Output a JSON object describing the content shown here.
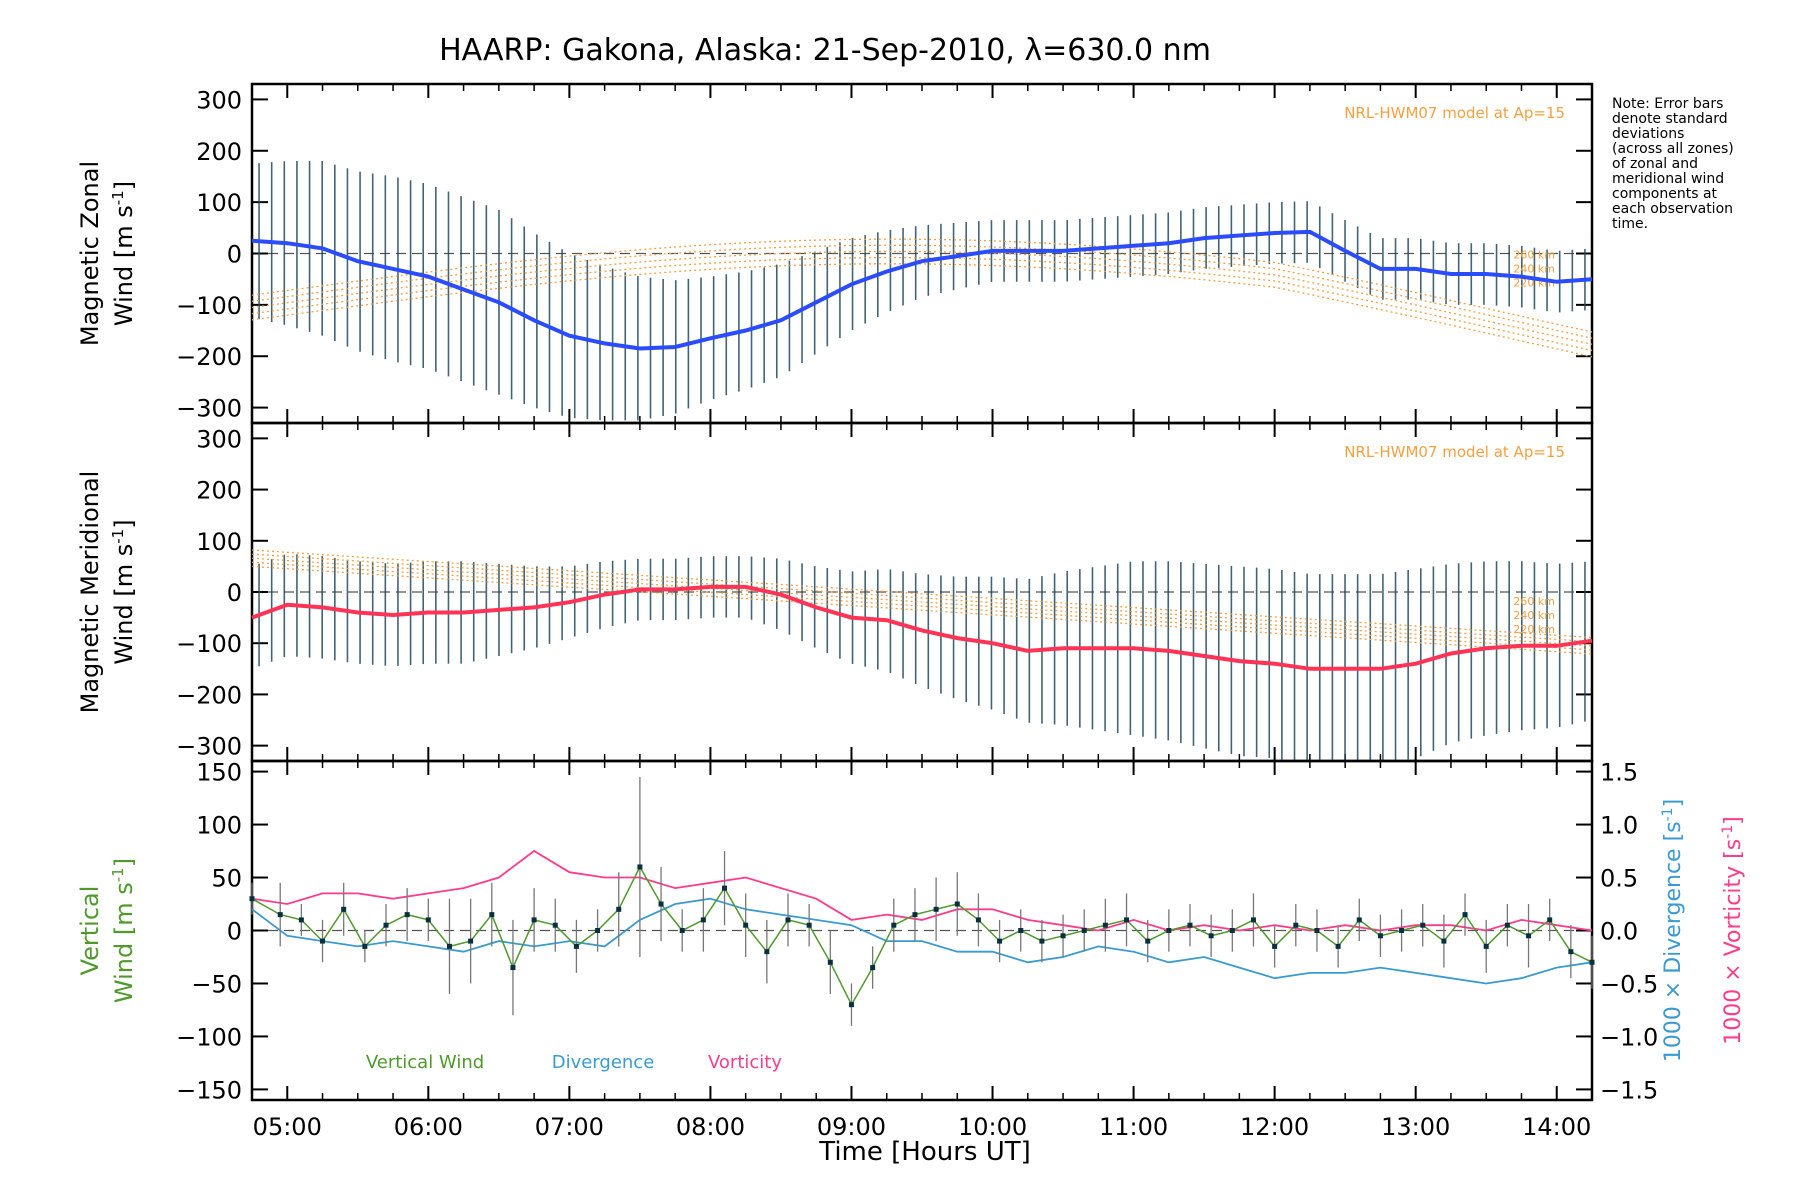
{
  "title": "HAARP: Gakona,  Alaska: 21-Sep-2010, λ=630.0 nm",
  "note": [
    "Note: Error bars",
    "denote standard",
    "deviations",
    "(across all zones)",
    "of zonal and",
    "meridional wind",
    "components at",
    "each observation",
    "time."
  ],
  "colors": {
    "zonal": "#2b4bff",
    "meridional": "#ff3355",
    "vertical": "#4f9a2a",
    "divergence": "#3a9bd0",
    "vorticity": "#ff3c8c",
    "model": "#f5a040",
    "errbar": "#1f4a5e",
    "zone_points": "#8e8ed6"
  },
  "x_axis": {
    "label": "Time [Hours UT]",
    "range": [
      "04:45",
      "14:15"
    ],
    "tick_labels": [
      "05:00",
      "06:00",
      "07:00",
      "08:00",
      "09:00",
      "10:00",
      "11:00",
      "12:00",
      "13:00",
      "14:00"
    ]
  },
  "chart_data": [
    {
      "type": "line",
      "panel": "zonal",
      "ylabel_1": "Magnetic Zonal",
      "ylabel_2": "Wind [m s",
      "ylabel_sup": "-1",
      "ylabel_end": "]",
      "ylim": [
        -330,
        330
      ],
      "ytick_labels": [
        "300",
        "200",
        "100",
        "0",
        "−100",
        "−200",
        "−300"
      ],
      "model_label": "NRL-HWM07 model at Ap=15",
      "model_altitudes": [
        "260 km",
        "240 km",
        "220 km"
      ],
      "x_hours": [
        4.75,
        5.0,
        5.25,
        5.5,
        5.75,
        6.0,
        6.25,
        6.5,
        6.75,
        7.0,
        7.25,
        7.5,
        7.75,
        8.0,
        8.25,
        8.5,
        8.75,
        9.0,
        9.25,
        9.5,
        9.75,
        10.0,
        10.25,
        10.5,
        10.75,
        11.0,
        11.25,
        11.5,
        11.75,
        12.0,
        12.25,
        12.5,
        12.75,
        13.0,
        13.25,
        13.5,
        13.75,
        14.0,
        14.25
      ],
      "series": [
        {
          "values": [
            25,
            20,
            10,
            -15,
            -30,
            -45,
            -70,
            -95,
            -130,
            -160,
            -175,
            -185,
            -182,
            -165,
            -150,
            -130,
            -95,
            -60,
            -35,
            -15,
            -5,
            5,
            5,
            5,
            10,
            15,
            20,
            30,
            35,
            40,
            42,
            5,
            -30,
            -30,
            -40,
            -40,
            -45,
            -55,
            -50
          ]
        }
      ],
      "errbar_sd": [
        150,
        160,
        170,
        175,
        180,
        180,
        180,
        180,
        170,
        160,
        150,
        140,
        130,
        120,
        115,
        110,
        100,
        90,
        80,
        70,
        65,
        60,
        60,
        60,
        60,
        60,
        60,
        60,
        60,
        60,
        60,
        60,
        60,
        60,
        60,
        60,
        60,
        60,
        60
      ]
    },
    {
      "type": "line",
      "panel": "meridional",
      "ylabel_1": "Magnetic Meridional",
      "ylabel_2": "Wind [m s",
      "ylabel_sup": "-1",
      "ylabel_end": "]",
      "ylim": [
        -330,
        330
      ],
      "ytick_labels": [
        "300",
        "200",
        "100",
        "0",
        "−100",
        "−200",
        "−300"
      ],
      "model_label": "NRL-HWM07 model at Ap=15",
      "model_altitudes": [
        "260 km",
        "240 km",
        "220 km"
      ],
      "x_hours": [
        4.75,
        5.0,
        5.25,
        5.5,
        5.75,
        6.0,
        6.25,
        6.5,
        6.75,
        7.0,
        7.25,
        7.5,
        7.75,
        8.0,
        8.25,
        8.5,
        8.75,
        9.0,
        9.25,
        9.5,
        9.75,
        10.0,
        10.25,
        10.5,
        10.75,
        11.0,
        11.25,
        11.5,
        11.75,
        12.0,
        12.25,
        12.5,
        12.75,
        13.0,
        13.25,
        13.5,
        13.75,
        14.0,
        14.25
      ],
      "series": [
        {
          "values": [
            -50,
            -25,
            -30,
            -40,
            -45,
            -40,
            -40,
            -35,
            -30,
            -20,
            -5,
            5,
            5,
            10,
            10,
            -5,
            -30,
            -50,
            -55,
            -75,
            -90,
            -100,
            -115,
            -110,
            -110,
            -110,
            -115,
            -125,
            -135,
            -140,
            -150,
            -150,
            -150,
            -140,
            -120,
            -110,
            -105,
            -105,
            -95
          ]
        }
      ],
      "errbar_sd": [
        100,
        100,
        100,
        100,
        100,
        100,
        100,
        90,
        80,
        70,
        65,
        60,
        60,
        60,
        60,
        70,
        80,
        90,
        100,
        110,
        120,
        130,
        140,
        150,
        160,
        170,
        175,
        180,
        185,
        185,
        185,
        185,
        185,
        185,
        175,
        170,
        165,
        160,
        155
      ]
    },
    {
      "type": "line",
      "panel": "vertical",
      "ylabel_1": "Vertical",
      "ylabel_2": "Wind [m s",
      "ylabel_sup": "-1",
      "ylabel_end": "]",
      "ylabel_right_1": "1000 × Divergence [s",
      "ylabel_right_2": "1000 × Vorticity [s",
      "ylabel_right_sup": "-1",
      "ylabel_right_end": "]",
      "ylim": [
        -160,
        160
      ],
      "ytick_labels": [
        "150",
        "100",
        "50",
        "0",
        "−50",
        "−100",
        "−150"
      ],
      "ylim_right": [
        -1.6,
        1.6
      ],
      "ytick_right_labels": [
        "1.5",
        "1.0",
        "0.5",
        "0.0",
        "−0.5",
        "−1.0",
        "−1.5"
      ],
      "legend": [
        "Vertical Wind",
        "Divergence",
        "Vorticity"
      ],
      "vertical_x": [
        4.75,
        4.95,
        5.1,
        5.25,
        5.4,
        5.55,
        5.7,
        5.85,
        6.0,
        6.15,
        6.3,
        6.45,
        6.6,
        6.75,
        6.9,
        7.05,
        7.2,
        7.35,
        7.5,
        7.65,
        7.8,
        7.95,
        8.1,
        8.25,
        8.4,
        8.55,
        8.7,
        8.85,
        9.0,
        9.15,
        9.3,
        9.45,
        9.6,
        9.75,
        9.9,
        10.05,
        10.2,
        10.35,
        10.5,
        10.65,
        10.8,
        10.95,
        11.1,
        11.25,
        11.4,
        11.55,
        11.7,
        11.85,
        12.0,
        12.15,
        12.3,
        12.45,
        12.6,
        12.75,
        12.9,
        13.05,
        13.2,
        13.35,
        13.5,
        13.65,
        13.8,
        13.95,
        14.1,
        14.25
      ],
      "vertical_values": [
        30,
        15,
        10,
        -10,
        20,
        -15,
        5,
        15,
        10,
        -15,
        -10,
        15,
        -35,
        10,
        5,
        -15,
        0,
        20,
        60,
        25,
        0,
        10,
        40,
        5,
        -20,
        10,
        5,
        -30,
        -70,
        -35,
        5,
        15,
        20,
        25,
        10,
        -10,
        0,
        -10,
        -5,
        0,
        5,
        10,
        -10,
        0,
        5,
        -5,
        0,
        10,
        -15,
        5,
        0,
        -15,
        10,
        -5,
        0,
        5,
        -10,
        15,
        -15,
        5,
        -5,
        10,
        -20,
        -30
      ],
      "vertical_err": [
        15,
        30,
        15,
        20,
        25,
        15,
        20,
        25,
        20,
        45,
        40,
        30,
        45,
        30,
        25,
        25,
        20,
        35,
        85,
        35,
        20,
        30,
        35,
        30,
        30,
        25,
        20,
        30,
        20,
        20,
        25,
        25,
        30,
        30,
        25,
        20,
        20,
        20,
        20,
        20,
        25,
        25,
        20,
        20,
        20,
        20,
        20,
        25,
        20,
        20,
        20,
        20,
        20,
        20,
        20,
        20,
        25,
        20,
        25,
        20,
        30,
        20,
        25,
        25
      ],
      "aux_x": [
        4.75,
        5.0,
        5.25,
        5.5,
        5.75,
        6.0,
        6.25,
        6.5,
        6.75,
        7.0,
        7.25,
        7.5,
        7.75,
        8.0,
        8.25,
        8.5,
        8.75,
        9.0,
        9.25,
        9.5,
        9.75,
        10.0,
        10.25,
        10.5,
        10.75,
        11.0,
        11.25,
        11.5,
        11.75,
        12.0,
        12.25,
        12.5,
        12.75,
        13.0,
        13.25,
        13.5,
        13.75,
        14.0,
        14.25
      ],
      "divergence_values": [
        0.2,
        -0.05,
        -0.1,
        -0.15,
        -0.1,
        -0.15,
        -0.2,
        -0.1,
        -0.15,
        -0.1,
        -0.15,
        0.1,
        0.25,
        0.3,
        0.2,
        0.15,
        0.1,
        0.05,
        -0.1,
        -0.1,
        -0.2,
        -0.2,
        -0.3,
        -0.25,
        -0.15,
        -0.2,
        -0.3,
        -0.25,
        -0.35,
        -0.45,
        -0.4,
        -0.4,
        -0.35,
        -0.4,
        -0.45,
        -0.5,
        -0.45,
        -0.35,
        -0.3
      ],
      "vorticity_values": [
        0.3,
        0.25,
        0.35,
        0.35,
        0.3,
        0.35,
        0.4,
        0.5,
        0.75,
        0.55,
        0.5,
        0.5,
        0.4,
        0.45,
        0.5,
        0.4,
        0.3,
        0.1,
        0.15,
        0.1,
        0.2,
        0.2,
        0.1,
        0.05,
        0.0,
        0.1,
        0.0,
        0.05,
        0.0,
        0.05,
        0.0,
        0.05,
        0.0,
        0.05,
        0.05,
        0.0,
        0.1,
        0.05,
        0.0
      ]
    }
  ]
}
